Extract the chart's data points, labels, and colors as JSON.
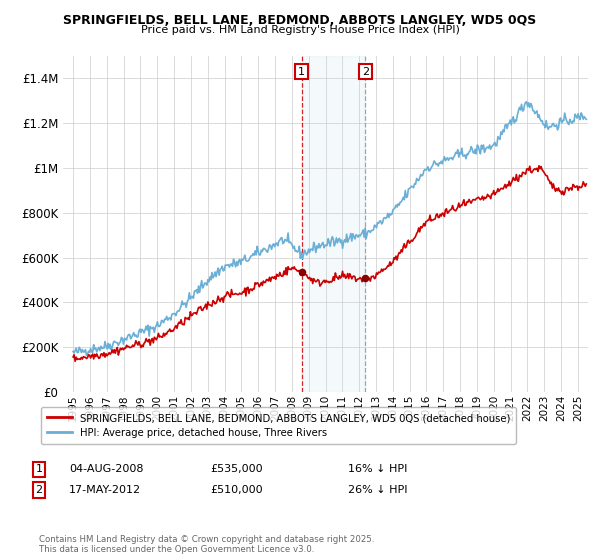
{
  "title_line1": "SPRINGFIELDS, BELL LANE, BEDMOND, ABBOTS LANGLEY, WD5 0QS",
  "title_line2": "Price paid vs. HM Land Registry's House Price Index (HPI)",
  "ylabel_ticks": [
    "£0",
    "£200K",
    "£400K",
    "£600K",
    "£800K",
    "£1M",
    "£1.2M",
    "£1.4M"
  ],
  "ytick_values": [
    0,
    200000,
    400000,
    600000,
    800000,
    1000000,
    1200000,
    1400000
  ],
  "ylim": [
    0,
    1500000
  ],
  "xlim_start": 1994.4,
  "xlim_end": 2025.6,
  "marker1_x": 2008.58,
  "marker2_x": 2012.37,
  "sale1_price": 535000,
  "sale2_price": 510000,
  "hpi_line_color": "#6baed6",
  "price_line_color": "#cc0000",
  "grid_color": "#cccccc",
  "background_color": "#ffffff",
  "legend_label1": "SPRINGFIELDS, BELL LANE, BEDMOND, ABBOTS LANGLEY, WD5 0QS (detached house)",
  "legend_label2": "HPI: Average price, detached house, Three Rivers",
  "footer": "Contains HM Land Registry data © Crown copyright and database right 2025.\nThis data is licensed under the Open Government Licence v3.0.",
  "annotation1_label": "1",
  "annotation1_date": "04-AUG-2008",
  "annotation1_price": "£535,000",
  "annotation1_hpi": "16% ↓ HPI",
  "annotation2_label": "2",
  "annotation2_date": "17-MAY-2012",
  "annotation2_price": "£510,000",
  "annotation2_hpi": "26% ↓ HPI"
}
